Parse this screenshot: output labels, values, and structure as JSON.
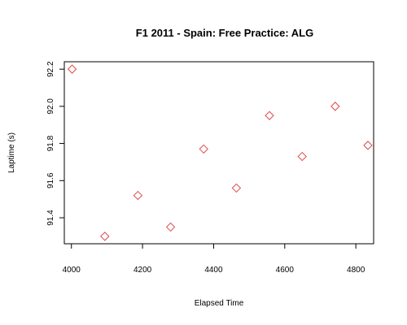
{
  "chart_data": {
    "type": "scatter",
    "title": "F1 2011 - Spain: Free Practice: ALG",
    "xlabel": "Elapsed Time",
    "ylabel": "Laptime (s)",
    "xlim": [
      3980,
      4850
    ],
    "ylim": [
      91.26,
      92.24
    ],
    "x_ticks": [
      4000,
      4200,
      4400,
      4600,
      4800
    ],
    "y_ticks": [
      91.4,
      91.6,
      91.8,
      92.0,
      92.2
    ],
    "marker": "diamond",
    "marker_color": "#e04848",
    "grid": false,
    "series": [
      {
        "points": [
          {
            "x": 4002,
            "y": 92.2
          },
          {
            "x": 4094,
            "y": 91.3
          },
          {
            "x": 4187,
            "y": 91.52
          },
          {
            "x": 4279,
            "y": 91.35
          },
          {
            "x": 4372,
            "y": 91.77
          },
          {
            "x": 4464,
            "y": 91.56
          },
          {
            "x": 4557,
            "y": 91.95
          },
          {
            "x": 4649,
            "y": 91.73
          },
          {
            "x": 4742,
            "y": 92.0
          },
          {
            "x": 4834,
            "y": 91.79
          }
        ]
      }
    ]
  }
}
